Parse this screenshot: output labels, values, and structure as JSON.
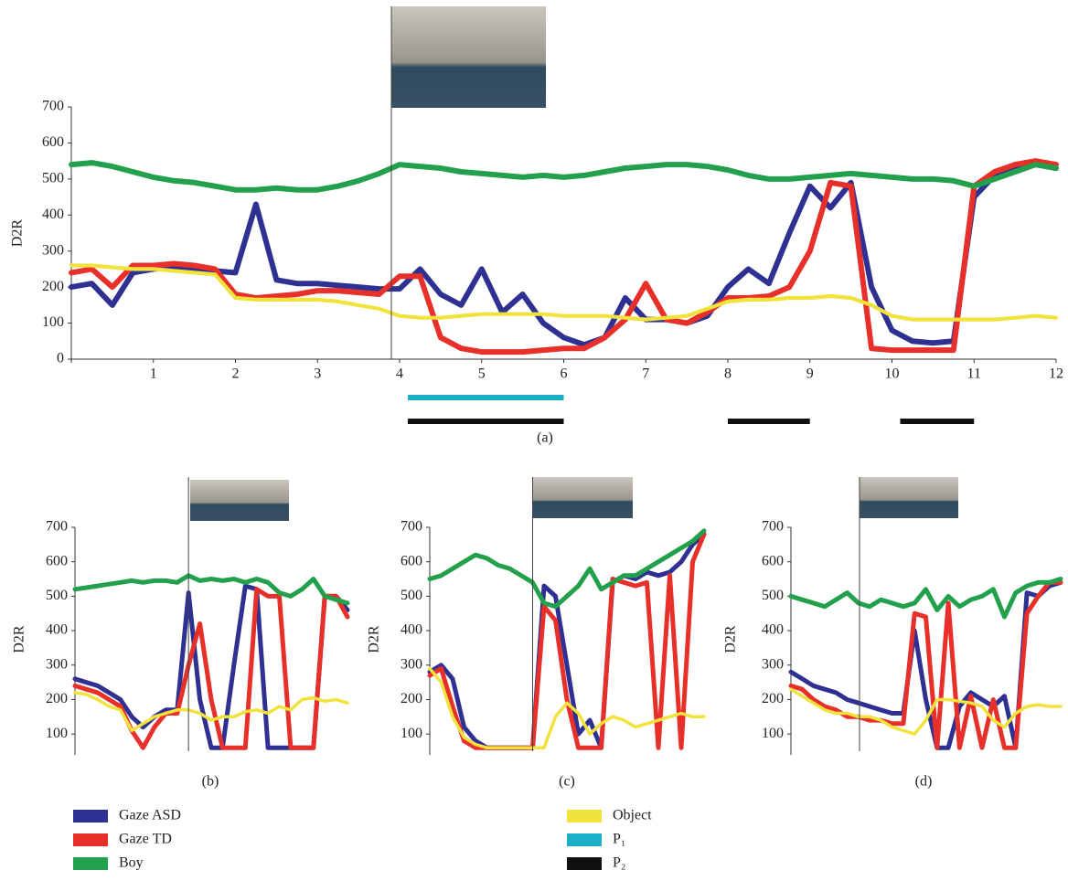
{
  "chart_data": [
    {
      "type": "line",
      "caption": "(a)",
      "ylabel": "D2R",
      "x": [
        0,
        0.25,
        0.5,
        0.75,
        1,
        1.25,
        1.5,
        1.75,
        2,
        2.25,
        2.5,
        2.75,
        3,
        3.25,
        3.5,
        3.75,
        4,
        4.25,
        4.5,
        4.75,
        5,
        5.25,
        5.5,
        5.75,
        6,
        6.25,
        6.5,
        6.75,
        7,
        7.25,
        7.5,
        7.75,
        8,
        8.25,
        8.5,
        8.75,
        9,
        9.25,
        9.5,
        9.75,
        10,
        10.25,
        10.5,
        10.75,
        11,
        11.25,
        11.5,
        11.75,
        12
      ],
      "xlim": [
        0,
        12
      ],
      "xticks": [
        1,
        2,
        3,
        4,
        5,
        6,
        7,
        8,
        9,
        10,
        11,
        12
      ],
      "ylim": [
        0,
        700
      ],
      "yticks": [
        0,
        100,
        200,
        300,
        400,
        500,
        600,
        700
      ],
      "cursor_x": 3.9,
      "series": [
        {
          "name": "Gaze ASD",
          "color": "#2e3192",
          "values": [
            200,
            210,
            150,
            240,
            250,
            255,
            250,
            245,
            240,
            430,
            220,
            210,
            210,
            205,
            200,
            195,
            195,
            250,
            180,
            150,
            250,
            130,
            180,
            100,
            60,
            40,
            60,
            170,
            110,
            110,
            100,
            120,
            200,
            250,
            210,
            350,
            480,
            420,
            490,
            200,
            80,
            50,
            45,
            50,
            450,
            510,
            530,
            540,
            530
          ]
        },
        {
          "name": "Gaze TD",
          "color": "#e8302a",
          "values": [
            240,
            250,
            200,
            260,
            260,
            265,
            260,
            250,
            180,
            170,
            175,
            180,
            190,
            190,
            185,
            180,
            230,
            230,
            60,
            30,
            20,
            20,
            20,
            25,
            30,
            30,
            60,
            110,
            210,
            110,
            100,
            130,
            170,
            170,
            175,
            200,
            300,
            490,
            480,
            30,
            25,
            25,
            25,
            25,
            480,
            520,
            540,
            550,
            540
          ]
        },
        {
          "name": "Boy",
          "color": "#22a04b",
          "values": [
            540,
            545,
            535,
            520,
            505,
            495,
            490,
            480,
            470,
            470,
            475,
            470,
            470,
            480,
            495,
            515,
            540,
            535,
            530,
            520,
            515,
            510,
            505,
            510,
            505,
            510,
            520,
            530,
            535,
            540,
            540,
            535,
            525,
            510,
            500,
            500,
            505,
            510,
            515,
            510,
            505,
            500,
            500,
            495,
            480,
            500,
            520,
            540,
            530
          ]
        },
        {
          "name": "Object",
          "color": "#f2e23c",
          "values": [
            260,
            260,
            255,
            250,
            250,
            245,
            240,
            235,
            170,
            165,
            165,
            165,
            165,
            160,
            150,
            140,
            120,
            115,
            115,
            120,
            125,
            125,
            125,
            125,
            120,
            120,
            120,
            115,
            110,
            115,
            120,
            140,
            160,
            165,
            165,
            170,
            170,
            175,
            170,
            150,
            120,
            110,
            110,
            110,
            110,
            110,
            115,
            120,
            115
          ]
        }
      ],
      "intervals": [
        {
          "name": "P₁",
          "color": "#1ab0c8",
          "spans": [
            [
              4.1,
              6
            ]
          ]
        },
        {
          "name": "P₂",
          "color": "#111111",
          "spans": [
            [
              4.1,
              6
            ],
            [
              8,
              9
            ],
            [
              10.1,
              11
            ]
          ]
        }
      ]
    },
    {
      "type": "line",
      "caption": "(b)",
      "ylabel": "D2R",
      "ylim": [
        50,
        700
      ],
      "yticks": [
        100,
        200,
        300,
        400,
        500,
        600,
        700
      ],
      "cursor_x": 10,
      "series": [
        {
          "color": "#2e3192",
          "values": [
            260,
            250,
            240,
            220,
            200,
            150,
            120,
            150,
            170,
            170,
            510,
            200,
            60,
            60,
            300,
            530,
            520,
            60,
            60,
            60,
            60,
            60,
            500,
            500,
            460
          ]
        },
        {
          "color": "#e8302a",
          "values": [
            240,
            230,
            220,
            200,
            180,
            110,
            60,
            120,
            160,
            160,
            300,
            420,
            200,
            60,
            60,
            60,
            520,
            500,
            500,
            60,
            60,
            60,
            500,
            500,
            440
          ]
        },
        {
          "color": "#22a04b",
          "values": [
            520,
            525,
            530,
            535,
            540,
            545,
            540,
            545,
            545,
            540,
            560,
            545,
            550,
            545,
            550,
            540,
            550,
            540,
            510,
            500,
            520,
            550,
            500,
            490,
            480
          ]
        },
        {
          "color": "#f2e23c",
          "values": [
            220,
            215,
            200,
            180,
            170,
            110,
            130,
            150,
            160,
            170,
            170,
            160,
            140,
            150,
            150,
            165,
            170,
            160,
            180,
            170,
            200,
            205,
            195,
            200,
            190
          ]
        }
      ]
    },
    {
      "type": "line",
      "caption": "(c)",
      "ylabel": "D2R",
      "ylim": [
        50,
        700
      ],
      "yticks": [
        100,
        200,
        300,
        400,
        500,
        600,
        700
      ],
      "cursor_x": 9,
      "series": [
        {
          "color": "#2e3192",
          "values": [
            280,
            300,
            260,
            120,
            80,
            60,
            60,
            60,
            60,
            60,
            530,
            500,
            300,
            100,
            140,
            60,
            540,
            560,
            550,
            570,
            560,
            570,
            600,
            650,
            680
          ]
        },
        {
          "color": "#e8302a",
          "values": [
            270,
            290,
            180,
            80,
            60,
            60,
            60,
            60,
            60,
            60,
            470,
            430,
            200,
            60,
            60,
            60,
            550,
            540,
            530,
            540,
            60,
            560,
            60,
            600,
            680
          ]
        },
        {
          "color": "#22a04b",
          "values": [
            550,
            560,
            580,
            600,
            620,
            610,
            590,
            580,
            560,
            540,
            480,
            470,
            500,
            530,
            580,
            520,
            540,
            560,
            560,
            580,
            600,
            620,
            640,
            660,
            690
          ]
        },
        {
          "color": "#f2e23c",
          "values": [
            290,
            250,
            150,
            90,
            70,
            60,
            60,
            60,
            60,
            60,
            60,
            150,
            190,
            160,
            100,
            130,
            150,
            140,
            120,
            130,
            140,
            150,
            160,
            150,
            150
          ]
        }
      ]
    },
    {
      "type": "line",
      "caption": "(d)",
      "ylabel": "D2R",
      "ylim": [
        50,
        700
      ],
      "yticks": [
        100,
        200,
        300,
        400,
        500,
        600,
        700
      ],
      "cursor_x": 6.1,
      "series": [
        {
          "color": "#2e3192",
          "values": [
            280,
            260,
            240,
            230,
            220,
            200,
            190,
            180,
            170,
            160,
            160,
            400,
            200,
            60,
            60,
            180,
            220,
            200,
            180,
            210,
            60,
            510,
            500,
            530,
            540
          ]
        },
        {
          "color": "#e8302a",
          "values": [
            240,
            230,
            200,
            180,
            170,
            150,
            150,
            140,
            140,
            130,
            130,
            450,
            440,
            60,
            480,
            60,
            210,
            60,
            200,
            60,
            60,
            450,
            500,
            540,
            540
          ]
        },
        {
          "color": "#22a04b",
          "values": [
            500,
            490,
            480,
            470,
            490,
            510,
            480,
            470,
            490,
            480,
            470,
            480,
            520,
            460,
            500,
            470,
            490,
            500,
            520,
            440,
            510,
            530,
            540,
            540,
            550
          ]
        },
        {
          "color": "#f2e23c",
          "values": [
            230,
            210,
            190,
            170,
            160,
            160,
            150,
            150,
            140,
            120,
            110,
            100,
            140,
            200,
            200,
            195,
            190,
            180,
            140,
            120,
            160,
            180,
            185,
            180,
            180
          ]
        }
      ]
    }
  ]
}
